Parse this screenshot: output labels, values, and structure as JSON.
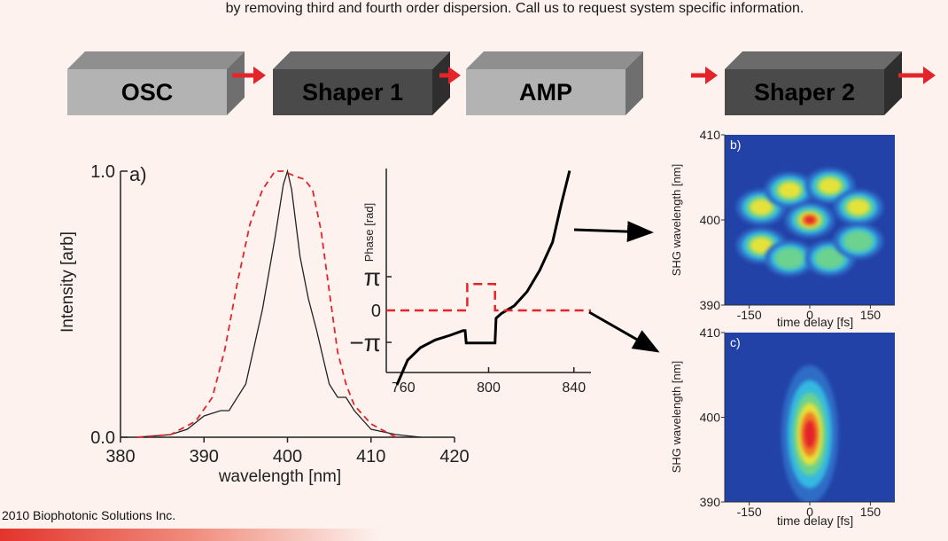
{
  "header": {
    "text": "by removing third and fourth order dispersion. Call us to request system specific information."
  },
  "pipeline": {
    "blocks": [
      {
        "label": "OSC",
        "front": "#b3b3b3",
        "top": "#8f8f8f",
        "side": "#6f6f6f"
      },
      {
        "label": "Shaper 1",
        "front": "#4a4a4a",
        "top": "#6b6b6b",
        "side": "#2e2e2e"
      },
      {
        "label": "AMP",
        "front": "#b3b3b3",
        "top": "#8f8f8f",
        "side": "#6f6f6f"
      },
      {
        "label": "Shaper 2",
        "front": "#4a4a4a",
        "top": "#6b6b6b",
        "side": "#2e2e2e"
      }
    ],
    "arrow_color": "#e3242b"
  },
  "chart_data": [
    {
      "type": "line",
      "panel_label": "a)",
      "xlabel": "wavelength [nm]",
      "ylabel": "Intensity [arb]",
      "xlim": [
        380,
        420
      ],
      "ylim": [
        0,
        1
      ],
      "x_ticks": [
        380,
        390,
        400,
        410,
        420
      ],
      "y_tick_labels": [
        "0.0",
        "1.0"
      ],
      "series": [
        {
          "style": "solid",
          "color": "#222222",
          "x": [
            382,
            386,
            388,
            390,
            392,
            393,
            395,
            397,
            398.5,
            399.5,
            400,
            400.5,
            401.5,
            402.5,
            403.5,
            405,
            406,
            407,
            408,
            410,
            413,
            416
          ],
          "y": [
            0,
            0.01,
            0.03,
            0.08,
            0.1,
            0.1,
            0.2,
            0.48,
            0.75,
            0.95,
            1.0,
            0.93,
            0.68,
            0.52,
            0.4,
            0.2,
            0.15,
            0.15,
            0.1,
            0.03,
            0.01,
            0
          ]
        },
        {
          "style": "dashed",
          "color": "#e3242b",
          "x": [
            382,
            386,
            389,
            391,
            392.5,
            394,
            395.5,
            397,
            398.5,
            399.5,
            401,
            402,
            403,
            404,
            405,
            406,
            407,
            408,
            410,
            413
          ],
          "y": [
            0,
            0.01,
            0.06,
            0.15,
            0.33,
            0.58,
            0.8,
            0.93,
            1.0,
            1.0,
            0.98,
            0.97,
            0.93,
            0.78,
            0.55,
            0.32,
            0.2,
            0.12,
            0.05,
            0
          ]
        }
      ]
    },
    {
      "type": "line",
      "panel_label": "",
      "xlabel": "",
      "ylabel": "Phase [rad]",
      "xlim": [
        752,
        848
      ],
      "x_ticks": [
        760,
        800,
        840
      ],
      "y_tick_labels": [
        "π",
        "0",
        "−π"
      ],
      "series": [
        {
          "style": "solid",
          "color": "#000000",
          "x": [
            757,
            762,
            768,
            775,
            782,
            788,
            789,
            789.5,
            797,
            803,
            803.5,
            806,
            812,
            818,
            824,
            830,
            834,
            838
          ],
          "y": [
            -2.4,
            -1.6,
            -1.2,
            -0.95,
            -0.8,
            -0.65,
            -0.65,
            -1.05,
            -1.05,
            -1.05,
            -0.25,
            -0.1,
            0.15,
            0.6,
            1.3,
            2.2,
            3.4,
            4.5
          ]
        },
        {
          "style": "dashed",
          "color": "#e3242b",
          "x": [
            752,
            790,
            790,
            803,
            803,
            848
          ],
          "y": [
            0,
            0,
            0.85,
            0.85,
            0,
            0
          ]
        }
      ]
    },
    {
      "type": "heatmap",
      "panel_label": "b)",
      "xlabel": "time delay [fs]",
      "ylabel": "SHG wavelength [nm]",
      "x_ticks": [
        -150,
        0,
        150
      ],
      "y_ticks": [
        410,
        400,
        390
      ],
      "spots": [
        {
          "t": -120,
          "nm": 401.5,
          "level": 2
        },
        {
          "t": -50,
          "nm": 403.5,
          "level": 2
        },
        {
          "t": 50,
          "nm": 404,
          "level": 2
        },
        {
          "t": 120,
          "nm": 401.5,
          "level": 2
        },
        {
          "t": -120,
          "nm": 397,
          "level": 2
        },
        {
          "t": 0,
          "nm": 400,
          "level": 4
        },
        {
          "t": -50,
          "nm": 395.5,
          "level": 1
        },
        {
          "t": 50,
          "nm": 395.5,
          "level": 1
        },
        {
          "t": 120,
          "nm": 397.5,
          "level": 1
        }
      ]
    },
    {
      "type": "heatmap",
      "panel_label": "c)",
      "xlabel": "time delay [fs]",
      "ylabel": "SHG wavelength [nm]",
      "x_ticks": [
        -150,
        0,
        150
      ],
      "y_ticks": [
        410,
        400,
        390
      ],
      "spots": [
        {
          "t": 0,
          "nm": 398,
          "level": 5
        }
      ]
    }
  ],
  "footer": {
    "copyright": "2010 Biophotonic Solutions Inc."
  }
}
